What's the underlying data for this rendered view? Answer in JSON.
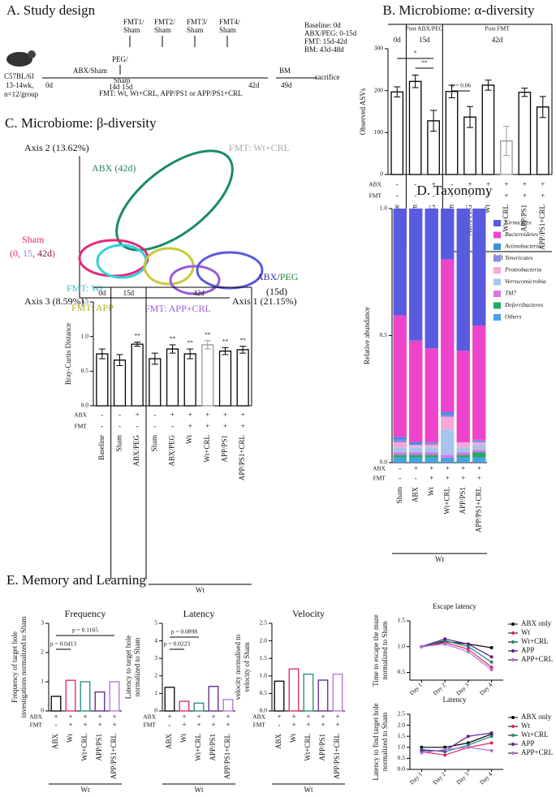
{
  "study_design": {
    "title": "A. Study design",
    "mouse": [
      "C57BL/6J",
      "13-14wk,",
      "n=12/group"
    ],
    "abx_sham": "ABX/Sham",
    "day0": "0d",
    "peg": [
      "PEG/",
      "Sham"
    ],
    "day14": "14d",
    "day15": "15d",
    "fmt_steps": [
      [
        "FMT1/",
        "Sham"
      ],
      [
        "FMT2/",
        "Sham"
      ],
      [
        "FMT3/",
        "Sham"
      ],
      [
        "FMT4/",
        "Sham"
      ]
    ],
    "day42": "42d",
    "bm": "BM",
    "day49": "49d",
    "sacrifice": "sacrifice",
    "schedule": [
      "Baseline: 0d",
      "ABX/PEG: 0-15d",
      "FMT: 15d-42d",
      "BM: 43d-48d"
    ],
    "fmt_groups": "FMT: Wt, Wt+CRL, APP/PS1 or APP/PS1+CRL"
  },
  "beta_diversity": {
    "title": "C. Microbiome: β-diversity",
    "axis2": "Axis 2 (13.62%)",
    "axis3": "Axis 3 (8.59%)",
    "axis1": "Axis 1 (21.15%)",
    "groups": {
      "abx42": "ABX (42d)",
      "fmt_wtcrl": "FMT: Wt+CRL",
      "sham": "Sham",
      "sham_days": [
        "(",
        "0",
        ", ",
        "15",
        ", ",
        "42d",
        ")"
      ],
      "fmt_wt": "FMT: Wt",
      "fmt_app": "FMT: APP",
      "abx_peg": [
        "ABX",
        "/",
        "PEG"
      ],
      "day15": "(15d)",
      "fmt_appcrl": "FMT: APP+CRL"
    }
  },
  "chart_data": [
    {
      "type": "bar",
      "title": "B. Microbiome: α-diversity",
      "ylabel": "Observed ASVs",
      "categories": [
        "Baseline",
        "Sham",
        "ABX/PEG",
        "Sham",
        "ABX/PEG",
        "Wt",
        "Wt+CRL",
        "APP/PS1",
        "APP/PS1+CRL"
      ],
      "values": [
        197,
        222,
        128,
        198,
        137,
        213,
        80,
        196,
        161
      ],
      "errors": [
        12,
        15,
        25,
        15,
        25,
        12,
        35,
        10,
        25
      ],
      "colors": [
        "#000",
        "#000",
        "#000",
        "#000",
        "#000",
        "#000",
        "#999",
        "#000",
        "#000"
      ],
      "ylim": [
        0,
        300
      ],
      "yticks": [
        0,
        100,
        200,
        300
      ],
      "group_labels": [
        "0d",
        "15d",
        "42d"
      ],
      "phase_labels": [
        "Post ABX/PEG",
        "Post FMT"
      ],
      "row_labels": [
        "ABX",
        "FMT"
      ],
      "abx": [
        "-",
        "-",
        "+",
        "-",
        "+",
        "+",
        "+",
        "+",
        "+"
      ],
      "fmt": [
        "-",
        "-",
        "-",
        "-",
        "-",
        "+",
        "+",
        "+",
        "+"
      ],
      "group": "Wt",
      "annotations": [
        "*",
        "**",
        "p = 0.06"
      ]
    },
    {
      "type": "bar",
      "ylabel": "Bray-Curtis Distance",
      "categories": [
        "Baseline",
        "Sham",
        "ABX/PEG",
        "Sham",
        "ABX/PEG",
        "Wt",
        "Wt+CRL",
        "APP/PS1",
        "APP/PS1+CRL"
      ],
      "values": [
        0.75,
        0.66,
        0.89,
        0.68,
        0.82,
        0.75,
        0.88,
        0.79,
        0.81
      ],
      "errors": [
        0.07,
        0.08,
        0.03,
        0.08,
        0.06,
        0.07,
        0.06,
        0.05,
        0.05
      ],
      "colors": [
        "#000",
        "#000",
        "#000",
        "#000",
        "#000",
        "#000",
        "#999",
        "#000",
        "#000"
      ],
      "ylim": [
        0,
        1.5
      ],
      "yticks": [
        {
          "value": 0,
          "label": "0.0"
        },
        0.5,
        {
          "value": 1,
          "label": "1.0"
        },
        1.5
      ],
      "group_labels": [
        "0d",
        "15d",
        "42d"
      ],
      "row_labels": [
        "ABX",
        "FMT"
      ],
      "abx": [
        "-",
        "-",
        "+",
        "-",
        "+",
        "+",
        "+",
        "+",
        "+"
      ],
      "fmt": [
        "-",
        "-",
        "-",
        "-",
        "-",
        "+",
        "+",
        "+",
        "+"
      ],
      "group": "Wt",
      "annotations": [
        "**",
        "**",
        "**",
        "**",
        "**",
        "**"
      ]
    },
    {
      "type": "stacked_bar",
      "title": "D. Taxonomy",
      "ylabel": "Relative abundance",
      "categories": [
        "Sham",
        "ABX",
        "Wt",
        "Wt+CRL",
        "APP/PS1",
        "APP/PS1+CRL"
      ],
      "series": [
        {
          "name": "Firmicutes",
          "color": "#5a5ae0",
          "values": [
            0.42,
            0.52,
            0.55,
            0.2,
            0.56,
            0.46
          ]
        },
        {
          "name": "Bacteroidetes",
          "color": "#ee44cc",
          "values": [
            0.48,
            0.4,
            0.37,
            0.6,
            0.36,
            0.45
          ]
        },
        {
          "name": "Actinobacteria",
          "color": "#3f8fdc",
          "values": [
            0.01,
            0.01,
            0,
            0.01,
            0,
            0
          ]
        },
        {
          "name": "Tenericutes",
          "color": "#8a8ae0",
          "values": [
            0.01,
            0,
            0.01,
            0.01,
            0,
            0.01
          ]
        },
        {
          "name": "Proteobacteria",
          "color": "#f4a8dc",
          "values": [
            0.02,
            0.01,
            0.01,
            0.05,
            0.02,
            0.01
          ]
        },
        {
          "name": "Verrucomicrobia",
          "color": "#a8c4ee",
          "values": [
            0.02,
            0.02,
            0.02,
            0.1,
            0.02,
            0.02
          ]
        },
        {
          "name": "TM7",
          "color": "#e070e6",
          "values": [
            0.01,
            0.01,
            0.01,
            0.01,
            0.01,
            0.01
          ]
        },
        {
          "name": "Deferribacteres",
          "color": "#1faa66",
          "values": [
            0.01,
            0.01,
            0.01,
            0,
            0.01,
            0.02
          ]
        },
        {
          "name": "Others",
          "color": "#49a2e6",
          "values": [
            0.02,
            0.02,
            0.02,
            0.02,
            0.02,
            0.02
          ]
        }
      ],
      "ylim": [
        0,
        1
      ],
      "yticks": [
        {
          "value": 0,
          "label": "0.0"
        },
        0.5,
        {
          "value": 1,
          "label": "1.0"
        }
      ],
      "row_labels": [
        "ABX",
        "FMT"
      ],
      "abx": [
        "-",
        "+",
        "+",
        "+",
        "+",
        "+"
      ],
      "fmt": [
        "-",
        "-",
        "+",
        "+",
        "+",
        "+"
      ],
      "group": "Wt"
    },
    {
      "type": "bar",
      "section_title": "E. Memory and Learning",
      "title": "Frequency",
      "ylabel": [
        "Frequency of target hole",
        "investigations normalized to Sham"
      ],
      "categories": [
        "ABX",
        "Wt",
        "Wt+CRL",
        "APP/PS1",
        "APP/PS1+CRL"
      ],
      "values": [
        0.5,
        1.05,
        1.0,
        0.65,
        1.0
      ],
      "colors": [
        "#000",
        "#e0245e",
        "#1a8a7a",
        "#5b1f8a",
        "#b070e0"
      ],
      "ylim": [
        0,
        3
      ],
      "yticks": [
        0,
        1,
        2,
        3
      ],
      "row_labels": [
        "ABX",
        "FMT"
      ],
      "abx": [
        "+",
        "+",
        "+",
        "+",
        "+"
      ],
      "fmt": [
        "-",
        "+",
        "+",
        "+",
        "+"
      ],
      "group": "Wt",
      "annotations": [
        "p = 0.1165",
        "p = 0.0413"
      ]
    },
    {
      "type": "bar",
      "title": "Latency",
      "ylabel": [
        "Latency to target hole",
        "normalized to Sham"
      ],
      "categories": [
        "ABX",
        "Wt",
        "Wt+CRL",
        "APP/PS1",
        "APP/PS1+CRL"
      ],
      "values": [
        1.35,
        0.55,
        0.45,
        1.4,
        0.65
      ],
      "colors": [
        "#000",
        "#e0245e",
        "#1a8a7a",
        "#5b1f8a",
        "#b070e0"
      ],
      "ylim": [
        0,
        5
      ],
      "yticks": [
        0,
        1,
        2,
        3,
        4,
        5
      ],
      "row_labels": [
        "ABX",
        "FMT"
      ],
      "abx": [
        "+",
        "+",
        "+",
        "+",
        "+"
      ],
      "fmt": [
        "-",
        "+",
        "+",
        "+",
        "+"
      ],
      "group": "Wt",
      "annotations": [
        "p = 0.0898",
        "p = 0.0223"
      ]
    },
    {
      "type": "bar",
      "title": "Velocity",
      "ylabel": [
        "velocity normalised to",
        "velocity of Sham"
      ],
      "categories": [
        "ABX",
        "Wt",
        "Wt+CRL",
        "APP/PS1",
        "APP/PS1+CRL"
      ],
      "values": [
        0.85,
        1.2,
        1.05,
        0.88,
        1.05
      ],
      "colors": [
        "#000",
        "#e0245e",
        "#1a8a7a",
        "#5b1f8a",
        "#b070e0"
      ],
      "ylim": [
        0,
        2.5
      ],
      "yticks": [
        {
          "value": 0,
          "label": "0.0"
        },
        0.5,
        {
          "value": 1,
          "label": "1.0"
        },
        1.5,
        {
          "value": 2,
          "label": "2.0"
        },
        2.5
      ],
      "row_labels": [
        "ABX",
        "FMT"
      ],
      "abx": [
        "+",
        "+",
        "+",
        "+",
        "+"
      ],
      "fmt": [
        "-",
        "+",
        "+",
        "+",
        "+"
      ],
      "group": "Wt"
    },
    {
      "type": "line",
      "title": "Escape latency",
      "ylabel": [
        "Time to escape the maze",
        "normalized to Sham"
      ],
      "categories": [
        "Day 1",
        "Day 2",
        "Day 3",
        "Day 4"
      ],
      "series": [
        {
          "name": "ABX only",
          "color": "#000",
          "values": [
            1.0,
            1.1,
            1.05,
            0.98
          ]
        },
        {
          "name": "Wt",
          "color": "#e0245e",
          "values": [
            1.0,
            1.08,
            0.95,
            0.6
          ]
        },
        {
          "name": "Wt+CRL",
          "color": "#1a8a7a",
          "values": [
            1.0,
            1.12,
            1.0,
            0.7
          ]
        },
        {
          "name": "APP",
          "color": "#5b1f8a",
          "values": [
            1.0,
            1.15,
            1.05,
            0.8
          ]
        },
        {
          "name": "APP+CRL",
          "color": "#b070e0",
          "values": [
            1.0,
            1.05,
            0.9,
            0.55
          ]
        }
      ],
      "ylim": [
        0.35,
        1.5
      ],
      "yticks": [
        0.5,
        {
          "value": 1,
          "label": "1.0"
        },
        1.5
      ]
    },
    {
      "type": "line",
      "title": "Latency",
      "ylabel": [
        "Latency to find target hole",
        "normalized to Sham"
      ],
      "categories": [
        "Day 1",
        "Day 2",
        "Day 3",
        "Day 4"
      ],
      "series": [
        {
          "name": "ABX only",
          "color": "#000",
          "values": [
            1.0,
            1.0,
            1.2,
            1.6
          ]
        },
        {
          "name": "Wt",
          "color": "#e0245e",
          "values": [
            0.8,
            0.65,
            1.0,
            1.2
          ]
        },
        {
          "name": "Wt+CRL",
          "color": "#1a8a7a",
          "values": [
            0.9,
            0.8,
            1.1,
            1.5
          ]
        },
        {
          "name": "APP",
          "color": "#5b1f8a",
          "values": [
            0.85,
            0.85,
            1.5,
            1.65
          ]
        },
        {
          "name": "APP+CRL",
          "color": "#b070e0",
          "values": [
            0.75,
            0.9,
            1.0,
            0.85
          ]
        }
      ],
      "ylim": [
        0,
        2.5
      ],
      "yticks": [
        {
          "value": 0,
          "label": "0.0"
        },
        0.5,
        {
          "value": 1,
          "label": "1.0"
        },
        1.5,
        {
          "value": 2,
          "label": "2.0"
        },
        2.5
      ]
    }
  ]
}
